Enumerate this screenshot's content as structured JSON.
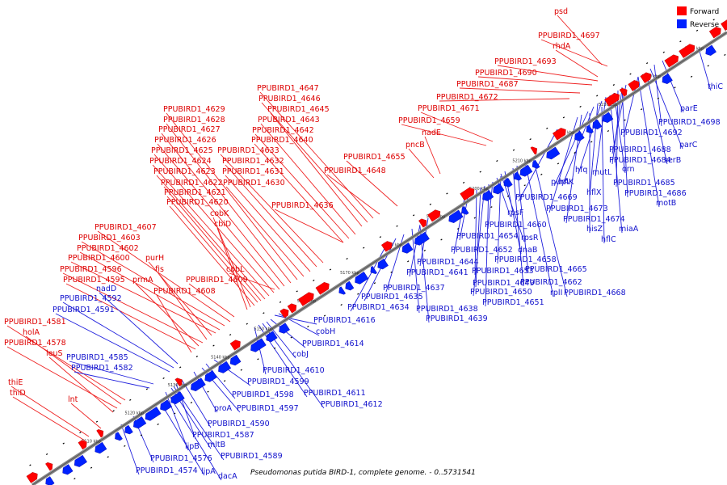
{
  "caption": "Pseudomonas putida BIRD-1, complete genome. - 0..5731541",
  "legend": {
    "forward_label": "Forward",
    "reverse_label": "Reverse",
    "forward_color": "#ff0000",
    "reverse_color": "#0022ff"
  },
  "ticks": [
    "5110 kbp",
    "5120 kbp",
    "5130 kbp",
    "5140 kbp",
    "5150 kbp",
    "5160 kbp",
    "5170 kbp",
    "5180 kbp",
    "5190 kbp",
    "5200 kbp",
    "5210 kbp",
    "5220 kbp",
    "5230 kbp",
    "5240 kbp",
    "5250 kbp"
  ],
  "forward_genes": [
    "psd",
    "PPUBIRD1_4697",
    "rhdA",
    "PPUBIRD1_4693",
    "PPUBIRD1_4690",
    "PPUBIRD1_4687",
    "PPUBIRD1_4672",
    "PPUBIRD1_4671",
    "PPUBIRD1_4659",
    "nadE",
    "pncB",
    "PPUBIRD1_4655",
    "PPUBIRD1_4648",
    "PPUBIRD1_4647",
    "PPUBIRD1_4646",
    "PPUBIRD1_4645",
    "PPUBIRD1_4643",
    "PPUBIRD1_4642",
    "PPUBIRD1_4640",
    "PPUBIRD1_4633",
    "PPUBIRD1_4632",
    "PPUBIRD1_4631",
    "PPUBIRD1_4630",
    "PPUBIRD1_4636",
    "PPUBIRD1_4629",
    "PPUBIRD1_4628",
    "PPUBIRD1_4627",
    "PPUBIRD1_4626",
    "PPUBIRD1_4625",
    "PPUBIRD1_4624",
    "PPUBIRD1_4623",
    "PPUBIRD1_4622",
    "PPUBIRD1_4621",
    "PPUBIRD1_4620",
    "cobK",
    "cbiD",
    "cobL",
    "PPUBIRD1_4607",
    "PPUBIRD1_4603",
    "PPUBIRD1_4602",
    "PPUBIRD1_4600",
    "purH",
    "fis",
    "PPUBIRD1_4596",
    "prmA",
    "PPUBIRD1_4595",
    "PPUBIRD1_4609",
    "PPUBIRD1_4608",
    "PPUBIRD1_4581",
    "holA",
    "PPUBIRD1_4578",
    "leuS",
    "thiE",
    "thiD",
    "lnt"
  ],
  "reverse_genes": [
    "thiC",
    "parE",
    "PPUBIRD1_4698",
    "PPUBIRD1_4692",
    "parC",
    "PPUBIRD1_4688",
    "PPUBIRD1_4684",
    "serB",
    "hfq",
    "mutL",
    "orn",
    "purA",
    "hflK",
    "hflX",
    "PPUBIRD1_4685",
    "PPUBIRD1_4686",
    "PPUBIRD1_4669",
    "motB",
    "PPUBIRD1_4673",
    "PPUBIRD1_4674",
    "hisZ",
    "miaA",
    "hflC",
    "rpsF",
    "PPUBIRD1_4660",
    "PPUBIRD1_4654",
    "rpsR",
    "PPUBIRD1_4652",
    "dnaB",
    "PPUBIRD1_4653",
    "PPUBIRD1_4658",
    "PPUBIRD1_4644",
    "PPUBIRD1_4665",
    "PPUBIRD1_4641",
    "PPUBIRD1_4649",
    "PPUBIRD1_4650",
    "PPUBIRD1_4662",
    "PPUBIRD1_4651",
    "rplI",
    "PPUBIRD1_4668",
    "PPUBIRD1_4637",
    "PPUBIRD1_4635",
    "PPUBIRD1_4634",
    "PPUBIRD1_4638",
    "PPUBIRD1_4639",
    "PPUBIRD1_4616",
    "cobH",
    "PPUBIRD1_4614",
    "cobJ",
    "PPUBIRD1_4610",
    "PPUBIRD1_4599",
    "PPUBIRD1_4611",
    "PPUBIRD1_4598",
    "PPUBIRD1_4612",
    "PPUBIRD1_4597",
    "proA",
    "nadD",
    "PPUBIRD1_4592",
    "PPUBIRD1_4591",
    "PPUBIRD1_4585",
    "PPUBIRD1_4582",
    "PPUBIRD1_4590",
    "PPUBIRD1_4587",
    "mltB",
    "lipB",
    "PPUBIRD1_4589",
    "PPUBIRD1_4576",
    "PPUBIRD1_4574",
    "lipA",
    "dacA"
  ]
}
